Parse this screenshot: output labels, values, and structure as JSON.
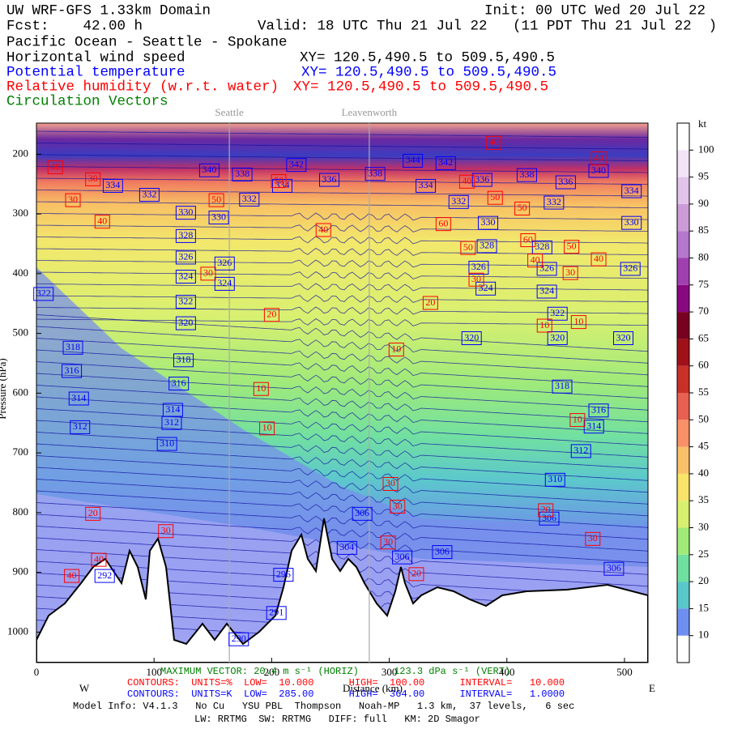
{
  "chart_data": {
    "type": "cross-section",
    "title": "UW WRF-GFS 1.33km Domain",
    "init": "Init: 00 UTC Wed 20 Jul 22",
    "forecast": "Fcst:    42.00 h",
    "valid": "Valid: 18 UTC Thu 21 Jul 22   (11 PDT Thu 21 Jul 22  )",
    "subtitle": "Pacific Ocean - Seattle - Spokane",
    "fields": [
      {
        "name": "Horizontal wind speed",
        "color": "#000000",
        "xy": "XY= 120.5,490.5 to 509.5,490.5"
      },
      {
        "name": "Potential temperature",
        "color": "#0000ff",
        "xy": "XY= 120.5,490.5 to 509.5,490.5"
      },
      {
        "name": "Relative humidity (w.r.t. water)",
        "color": "#ff0000",
        "xy": "XY= 120.5,490.5 to 509.5,490.5"
      },
      {
        "name": "Circulation Vectors",
        "color": "#008000"
      }
    ],
    "x_label": "Distance (km)",
    "y_label": "Pressure (hPa)",
    "left_label": "W",
    "right_label": "E",
    "xlim": [
      0,
      520
    ],
    "ylim": [
      1051,
      148
    ],
    "xticks": [
      0,
      100,
      200,
      300,
      400,
      500
    ],
    "yticks": [
      200,
      300,
      400,
      500,
      600,
      700,
      800,
      900,
      1000
    ],
    "locations": [
      {
        "name": "Seattle",
        "x": 164
      },
      {
        "name": "Leavenworth",
        "x": 283
      }
    ],
    "colorbar": {
      "label": "kt",
      "lim": [
        5,
        105
      ],
      "levels": [
        10,
        15,
        20,
        25,
        30,
        35,
        40,
        45,
        50,
        55,
        60,
        65,
        70,
        75,
        80,
        85,
        90,
        95,
        100
      ],
      "colors": [
        "#ffffff",
        "#6f8ff0",
        "#5ac8c8",
        "#6fe0a0",
        "#a0ea7a",
        "#d8f070",
        "#f8e468",
        "#f8c068",
        "#f89068",
        "#e86050",
        "#c83028",
        "#a01018",
        "#780020",
        "#880880",
        "#a040b0",
        "#b478cc",
        "#cc9cd8",
        "#e2c4ea",
        "#f2e4f6",
        "#ffffff"
      ]
    },
    "theta_labels": {
      "color": "#0000ff",
      "values": [
        340,
        338,
        342,
        336,
        338,
        344,
        342,
        336,
        338,
        336,
        340,
        334,
        332,
        334,
        332,
        334,
        334,
        332,
        332,
        330,
        330,
        330,
        330,
        328,
        328,
        328,
        326,
        326,
        326,
        326,
        326,
        324,
        324,
        324,
        324,
        322,
        322,
        322,
        320,
        320,
        320,
        320,
        318,
        318,
        318,
        316,
        316,
        316,
        314,
        314,
        314,
        312,
        312,
        312,
        310,
        310,
        306,
        306,
        306,
        306,
        304,
        296,
        292,
        291,
        290,
        306
      ],
      "x": [
        147,
        175,
        221,
        249,
        288,
        320,
        348,
        379,
        417,
        450,
        478,
        65,
        96,
        506,
        181,
        209,
        331,
        359,
        440,
        127,
        155,
        384,
        506,
        127,
        383,
        430,
        127,
        160,
        376,
        434,
        505,
        127,
        160,
        382,
        434,
        6,
        443,
        127,
        127,
        370,
        443,
        499,
        31,
        125,
        447,
        30,
        121,
        478,
        36,
        116,
        474,
        37,
        115,
        463,
        111,
        441,
        277,
        436,
        345,
        311,
        264,
        210,
        58,
        204,
        172,
        491
      ],
      "p": [
        227,
        234,
        218,
        243,
        233,
        211,
        215,
        243,
        235,
        247,
        228,
        253,
        268,
        262,
        276,
        253,
        253,
        280,
        281,
        298,
        306,
        315,
        315,
        337,
        354,
        356,
        373,
        383,
        390,
        392,
        392,
        405,
        417,
        425,
        430,
        434,
        467,
        447,
        483,
        508,
        508,
        508,
        524,
        545,
        589,
        563,
        584,
        629,
        609,
        628,
        656,
        657,
        650,
        697,
        685,
        745,
        802,
        810,
        866,
        875,
        859,
        904,
        906,
        968,
        1012,
        894
      ]
    },
    "rh_labels": {
      "color": "#ff0000",
      "values": [
        40,
        30,
        30,
        40,
        50,
        50,
        40,
        40,
        50,
        50,
        60,
        60,
        50,
        50,
        40,
        40,
        30,
        30,
        30,
        20,
        20,
        10,
        10,
        10,
        10,
        10,
        10,
        20,
        30,
        30,
        30,
        30,
        20,
        20,
        30,
        40,
        40,
        40,
        40
      ],
      "x": [
        16,
        48,
        31,
        56,
        153,
        206,
        244,
        366,
        390,
        413,
        346,
        418,
        367,
        455,
        424,
        478,
        454,
        146,
        374,
        335,
        200,
        432,
        461,
        306,
        191,
        196,
        460,
        48,
        110,
        301,
        307,
        299,
        323,
        433,
        473,
        30,
        53,
        389,
        478
      ],
      "p": [
        222,
        242,
        277,
        313,
        277,
        245,
        327,
        246,
        273,
        291,
        317,
        344,
        357,
        355,
        378,
        376,
        399,
        400,
        410,
        449,
        469,
        487,
        481,
        527,
        593,
        659,
        645,
        802,
        831,
        752,
        790,
        850,
        903,
        796,
        844,
        906,
        879,
        181,
        207
      ]
    },
    "footer": {
      "max_vector": "MAXIMUM VECTOR: 20.4 m s⁻¹ (HORIZ)      123.3 dPa s⁻¹ (VERT)",
      "rh_contours": "CONTOURS:  UNITS=%  LOW=  10.000      HIGH=  100.00      INTERVAL=   10.000",
      "theta_contours": "CONTOURS:  UNITS=K  LOW=  285.00      HIGH=  364.00      INTERVAL=   1.0000",
      "model_info": "Model Info: V4.1.3   No Cu   YSU PBL  Thompson   Noah-MP   1.3 km,  37 levels,   6 sec",
      "physics": "LW: RRTMG  SW: RRTMG   DIFF: full   KM: 2D Smagor"
    }
  }
}
